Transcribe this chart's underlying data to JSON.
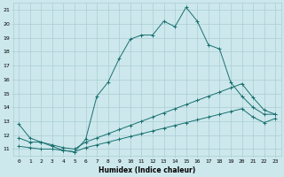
{
  "xlabel": "Humidex (Indice chaleur)",
  "bg_color": "#cce8ec",
  "grid_color": "#aacdd4",
  "line_color": "#1a7070",
  "xlim": [
    -0.5,
    23.5
  ],
  "ylim": [
    10.5,
    21.5
  ],
  "xticks": [
    0,
    1,
    2,
    3,
    4,
    5,
    6,
    7,
    8,
    9,
    10,
    11,
    12,
    13,
    14,
    15,
    16,
    17,
    18,
    19,
    20,
    21,
    22,
    23
  ],
  "yticks": [
    11,
    12,
    13,
    14,
    15,
    16,
    17,
    18,
    19,
    20,
    21
  ],
  "line_max": {
    "x": [
      0,
      1,
      2,
      3,
      4,
      5,
      6,
      7,
      8,
      9,
      10,
      11,
      12,
      13,
      14,
      15,
      16,
      17,
      18,
      19,
      20,
      21,
      22,
      23
    ],
    "y": [
      12.8,
      11.8,
      11.5,
      11.2,
      10.9,
      10.8,
      11.7,
      14.8,
      15.8,
      17.5,
      18.9,
      19.2,
      19.2,
      20.2,
      19.8,
      21.2,
      20.2,
      18.5,
      18.2,
      15.8,
      14.8,
      14.0,
      13.5,
      13.5
    ]
  },
  "line_avg": {
    "x": [
      0,
      1,
      2,
      3,
      4,
      5,
      6,
      7,
      8,
      9,
      10,
      11,
      12,
      13,
      14,
      15,
      16,
      17,
      18,
      19,
      20,
      21,
      22,
      23
    ],
    "y": [
      11.8,
      11.5,
      11.5,
      11.3,
      11.1,
      11.0,
      11.5,
      11.8,
      12.1,
      12.4,
      12.7,
      13.0,
      13.3,
      13.6,
      13.9,
      14.2,
      14.5,
      14.8,
      15.1,
      15.4,
      15.7,
      14.7,
      13.8,
      13.5
    ]
  },
  "line_min": {
    "x": [
      0,
      1,
      2,
      3,
      4,
      5,
      6,
      7,
      8,
      9,
      10,
      11,
      12,
      13,
      14,
      15,
      16,
      17,
      18,
      19,
      20,
      21,
      22,
      23
    ],
    "y": [
      11.2,
      11.1,
      11.0,
      11.0,
      10.9,
      10.8,
      11.1,
      11.3,
      11.5,
      11.7,
      11.9,
      12.1,
      12.3,
      12.5,
      12.7,
      12.9,
      13.1,
      13.3,
      13.5,
      13.7,
      13.9,
      13.3,
      12.9,
      13.2
    ]
  }
}
